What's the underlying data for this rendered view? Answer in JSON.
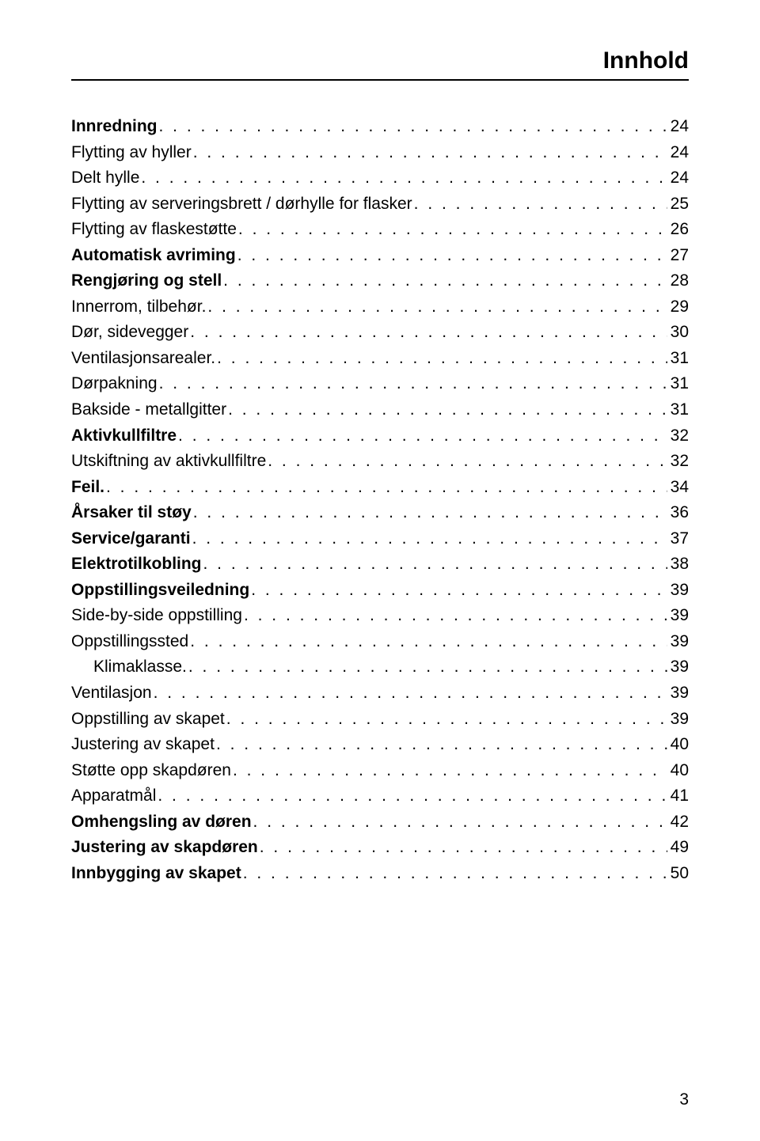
{
  "header": {
    "title": "Innhold"
  },
  "toc": [
    {
      "label": "Innredning",
      "page": "24",
      "bold": true,
      "indent": false
    },
    {
      "label": "Flytting av hyller",
      "page": "24",
      "bold": false,
      "indent": false
    },
    {
      "label": "Delt hylle",
      "page": "24",
      "bold": false,
      "indent": false
    },
    {
      "label": "Flytting av serveringsbrett / dørhylle for flasker",
      "page": "25",
      "bold": false,
      "indent": false
    },
    {
      "label": "Flytting av flaskestøtte",
      "page": "26",
      "bold": false,
      "indent": false
    },
    {
      "label": "Automatisk avriming",
      "page": "27",
      "bold": true,
      "indent": false
    },
    {
      "label": "Rengjøring og stell",
      "page": "28",
      "bold": true,
      "indent": false
    },
    {
      "label": "Innerrom, tilbehør.",
      "page": "29",
      "bold": false,
      "indent": false
    },
    {
      "label": "Dør, sidevegger",
      "page": "30",
      "bold": false,
      "indent": false
    },
    {
      "label": "Ventilasjonsarealer.",
      "page": "31",
      "bold": false,
      "indent": false
    },
    {
      "label": "Dørpakning",
      "page": "31",
      "bold": false,
      "indent": false
    },
    {
      "label": "Bakside - metallgitter",
      "page": "31",
      "bold": false,
      "indent": false
    },
    {
      "label": "Aktivkullfiltre",
      "page": "32",
      "bold": true,
      "indent": false
    },
    {
      "label": "Utskiftning av aktivkullfiltre",
      "page": "32",
      "bold": false,
      "indent": false
    },
    {
      "label": "Feil.",
      "page": "34",
      "bold": true,
      "indent": false
    },
    {
      "label": "Årsaker til støy",
      "page": "36",
      "bold": true,
      "indent": false
    },
    {
      "label": "Service/garanti",
      "page": "37",
      "bold": true,
      "indent": false
    },
    {
      "label": "Elektrotilkobling",
      "page": "38",
      "bold": true,
      "indent": false
    },
    {
      "label": "Oppstillingsveiledning",
      "page": "39",
      "bold": true,
      "indent": false
    },
    {
      "label": "Side-by-side oppstilling",
      "page": "39",
      "bold": false,
      "indent": false
    },
    {
      "label": "Oppstillingssted",
      "page": "39",
      "bold": false,
      "indent": false
    },
    {
      "label": "Klimaklasse.",
      "page": "39",
      "bold": false,
      "indent": true
    },
    {
      "label": "Ventilasjon",
      "page": "39",
      "bold": false,
      "indent": false
    },
    {
      "label": "Oppstilling av skapet",
      "page": "39",
      "bold": false,
      "indent": false
    },
    {
      "label": "Justering av skapet",
      "page": "40",
      "bold": false,
      "indent": false
    },
    {
      "label": "Støtte opp skapdøren",
      "page": "40",
      "bold": false,
      "indent": false
    },
    {
      "label": "Apparatmål",
      "page": "41",
      "bold": false,
      "indent": false
    },
    {
      "label": "Omhengsling av døren",
      "page": "42",
      "bold": true,
      "indent": false
    },
    {
      "label": "Justering av skapdøren",
      "page": "49",
      "bold": true,
      "indent": false
    },
    {
      "label": "Innbygging av skapet",
      "page": "50",
      "bold": true,
      "indent": false
    }
  ],
  "footer": {
    "page_number": "3"
  }
}
